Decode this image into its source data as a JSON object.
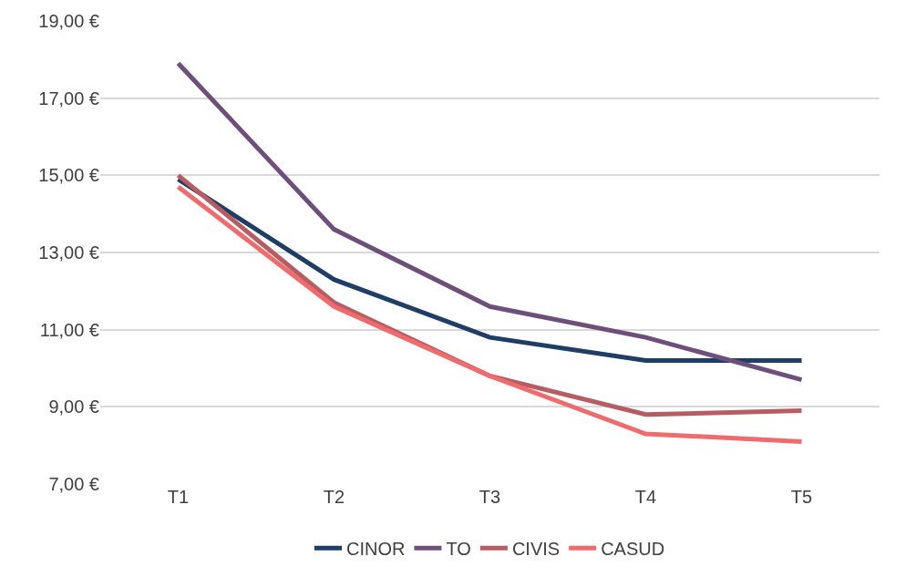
{
  "chart_data": {
    "type": "line",
    "categories": [
      "T1",
      "T2",
      "T3",
      "T4",
      "T5"
    ],
    "series": [
      {
        "name": "CINOR",
        "color": "#1f3e66",
        "values": [
          14.9,
          12.3,
          10.8,
          10.2,
          10.2
        ]
      },
      {
        "name": "TO",
        "color": "#6e4f7b",
        "values": [
          17.9,
          13.6,
          11.6,
          10.8,
          9.7
        ]
      },
      {
        "name": "CIVIS",
        "color": "#b85c63",
        "values": [
          15.0,
          11.7,
          9.8,
          8.8,
          8.9
        ]
      },
      {
        "name": "CASUD",
        "color": "#ee6b6e",
        "values": [
          14.7,
          11.6,
          9.8,
          8.3,
          8.1
        ]
      }
    ],
    "ylim": [
      7,
      19
    ],
    "yticks": [
      {
        "value": 7,
        "label": "7,00 €"
      },
      {
        "value": 9,
        "label": "9,00 €"
      },
      {
        "value": 11,
        "label": "11,00 €"
      },
      {
        "value": 13,
        "label": "13,00 €"
      },
      {
        "value": 15,
        "label": "15,00 €"
      },
      {
        "value": 17,
        "label": "17,00 €"
      },
      {
        "value": 19,
        "label": "19,00 €"
      }
    ],
    "grid": "y",
    "legend": "bottom",
    "marker": "none",
    "line_style": "solid"
  }
}
